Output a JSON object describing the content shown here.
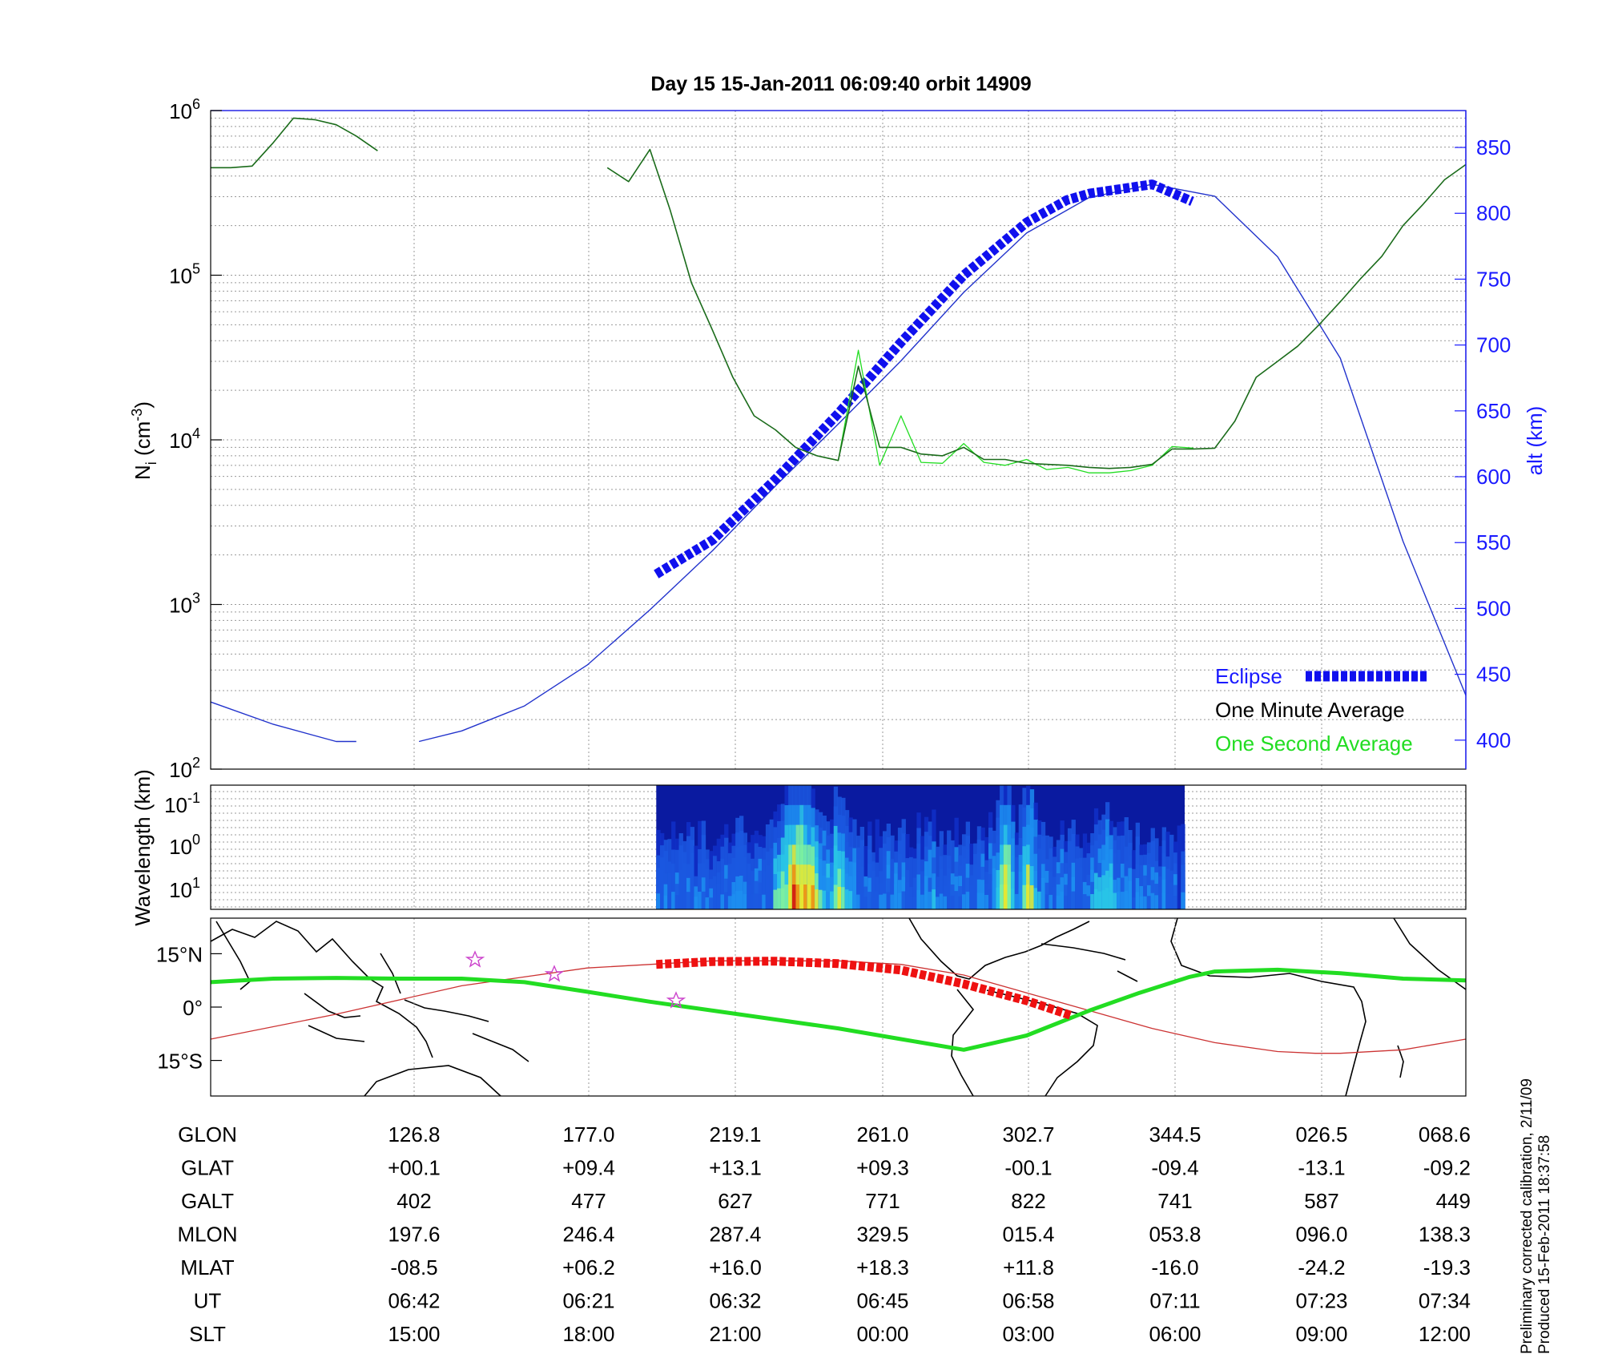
{
  "title": "Day 15  15-Jan-2011 06:09:40   orbit 14909",
  "panel1": {
    "ylabel_left": "N",
    "ylabel_left_sub": "i",
    "ylabel_left_unit_pre": " (cm",
    "ylabel_left_unit_sup": "-3",
    "ylabel_left_unit_post": ")",
    "ylabel_right": "alt (km)",
    "left_ticks": [
      {
        "base": "10",
        "exp": "2",
        "value": 100
      },
      {
        "base": "10",
        "exp": "3",
        "value": 1000
      },
      {
        "base": "10",
        "exp": "4",
        "value": 10000
      },
      {
        "base": "10",
        "exp": "5",
        "value": 100000
      },
      {
        "base": "10",
        "exp": "6",
        "value": 1000000
      }
    ],
    "right_ticks": [
      "400",
      "450",
      "500",
      "550",
      "600",
      "650",
      "700",
      "750",
      "800",
      "850"
    ],
    "legend": [
      "Eclipse",
      "One Minute Average",
      "One Second Average"
    ]
  },
  "panel2": {
    "ylabel": "Wavelength (km)",
    "ticks": [
      {
        "base": "10",
        "exp": "-1"
      },
      {
        "base": "10",
        "exp": "0"
      },
      {
        "base": "10",
        "exp": "1"
      }
    ]
  },
  "panel3": {
    "yticks": [
      "15°N",
      "0°",
      "15°S"
    ]
  },
  "table": {
    "rows": [
      {
        "label": "GLON",
        "values": [
          "126.8",
          "177.0",
          "219.1",
          "261.0",
          "302.7",
          "344.5",
          "026.5",
          "068.6"
        ]
      },
      {
        "label": "GLAT",
        "values": [
          "+00.1",
          "+09.4",
          "+13.1",
          "+09.3",
          "-00.1",
          "-09.4",
          "-13.1",
          "-09.2"
        ]
      },
      {
        "label": "GALT",
        "values": [
          "402",
          "477",
          "627",
          "771",
          "822",
          "741",
          "587",
          "449"
        ]
      },
      {
        "label": "MLON",
        "values": [
          "197.6",
          "246.4",
          "287.4",
          "329.5",
          "015.4",
          "053.8",
          "096.0",
          "138.3"
        ]
      },
      {
        "label": "MLAT",
        "values": [
          "-08.5",
          "+06.2",
          "+16.0",
          "+18.3",
          "+11.8",
          "-16.0",
          "-24.2",
          "-19.3"
        ]
      },
      {
        "label": "UT",
        "values": [
          "06:42",
          "06:21",
          "06:32",
          "06:45",
          "06:58",
          "07:11",
          "07:23",
          "07:34"
        ]
      },
      {
        "label": "SLT",
        "values": [
          "15:00",
          "18:00",
          "21:00",
          "00:00",
          "03:00",
          "06:00",
          "09:00",
          "12:00"
        ]
      }
    ]
  },
  "footnote": [
    "Preliminary corrected calibration, 2/11/09",
    "Produced 15-Feb-2011 18:37:58"
  ],
  "colors": {
    "eclipse": "#1010ee",
    "altitude": "#2233cc",
    "minute_avg": "#1a6b1a",
    "second_avg": "#22dd22",
    "ground_track": "#22dd22",
    "equator": "#cc3333",
    "eclipse_track": "#ee1111",
    "axis_right": "#1a1aff"
  },
  "chart_data": [
    {
      "type": "line",
      "title": "Day 15  15-Jan-2011 06:09:40   orbit 14909",
      "ylabel": "Ni (cm-3)",
      "y2label": "alt (km)",
      "yscale": "log",
      "ylim": [
        100,
        1000000
      ],
      "y2lim": [
        378,
        878
      ],
      "x_tick_labels_slt": [
        "15:00",
        "18:00",
        "21:00",
        "00:00",
        "03:00",
        "06:00",
        "09:00",
        "12:00"
      ],
      "grid": true,
      "legend_position": "bottom-right",
      "series": [
        {
          "name": "One Minute Average",
          "x": [
            0,
            1.6,
            3.3,
            5,
            6.6,
            8.3,
            10,
            11.6,
            13.3,
            15,
            16.6,
            18.3,
            20,
            21.6,
            23.3,
            25,
            26.6,
            28.3,
            30,
            31.6,
            33.3,
            35,
            36.6,
            38.3,
            40,
            41.6,
            43.3,
            45,
            46.6,
            48.3,
            50,
            51.6,
            53.3,
            55,
            56.6,
            58.3,
            60,
            61.6,
            63.3,
            65,
            66.6,
            68.3,
            70,
            71.6,
            73.3,
            75,
            76.6,
            78.3,
            80,
            81.6,
            83.3,
            85,
            86.6,
            88.3,
            90,
            91.6,
            93.3,
            95,
            96.6,
            98.3,
            100
          ],
          "y": [
            450000,
            450000,
            460000,
            640000,
            900000,
            880000,
            820000,
            700000,
            570000,
            null,
            null,
            null,
            null,
            null,
            null,
            null,
            null,
            null,
            null,
            450000,
            370000,
            580000,
            250000,
            90000,
            46000,
            24000,
            14000,
            11500,
            9000,
            8000,
            7500,
            28000,
            9000,
            9000,
            8200,
            8000,
            9000,
            7600,
            7600,
            7200,
            7100,
            7000,
            6800,
            6700,
            6800,
            7100,
            8800,
            8800,
            8900,
            13000,
            24000,
            30000,
            37000,
            50000,
            69000,
            95000,
            130000,
            200000,
            270000,
            380000,
            470000
          ]
        },
        {
          "name": "One Second Average",
          "x": [
            48.3,
            50,
            51.6,
            53.3,
            55,
            56.6,
            58.3,
            60,
            61.6,
            63.3,
            65,
            66.6,
            68.3,
            70,
            71.6,
            73.3,
            75,
            76.6,
            78.3
          ],
          "y": [
            8000,
            7500,
            35000,
            7000,
            14000,
            7300,
            7200,
            9500,
            7300,
            7000,
            7600,
            6600,
            6800,
            6300,
            6300,
            6500,
            7000,
            9100,
            8900
          ]
        },
        {
          "name": "alt (km)",
          "x": [
            0,
            5,
            10,
            11.6,
            16.6,
            20,
            25,
            30,
            35,
            40,
            45,
            50,
            55,
            60,
            65,
            70,
            75,
            80,
            85,
            90,
            95,
            100
          ],
          "y": [
            429,
            412,
            399,
            399,
            399,
            407,
            426,
            457,
            499,
            544,
            593,
            640,
            688,
            740,
            785,
            812,
            822,
            813,
            767,
            690,
            551,
            434
          ]
        },
        {
          "name": "Eclipse",
          "x": [
            35.5,
            40,
            45,
            50,
            55,
            60,
            65,
            68.2,
            70,
            75,
            78.2
          ],
          "y": [
            526,
            552,
            598,
            648,
            702,
            753,
            793,
            810,
            815,
            822,
            809
          ]
        }
      ]
    },
    {
      "type": "heatmap",
      "ylabel": "Wavelength (km)",
      "ytick_labels": [
        "10-1",
        "100",
        "101"
      ],
      "data_extent_x_percent": [
        35.5,
        77.6
      ]
    },
    {
      "type": "line",
      "ytick_labels": [
        "15°N",
        "0°",
        "15°S"
      ],
      "ylim": [
        -25,
        25
      ],
      "series": [
        {
          "name": "ground track",
          "x": [
            0,
            5,
            10,
            15,
            18,
            20,
            25,
            30,
            35,
            40,
            45,
            50,
            55,
            60,
            65,
            70,
            74,
            78,
            80,
            85,
            90,
            95,
            100
          ],
          "y": [
            7,
            8,
            8.2,
            8,
            8,
            8,
            7,
            4.3,
            1.5,
            -1,
            -3.5,
            -6,
            -9,
            -12,
            -8,
            -1,
            4,
            8.5,
            10,
            10.5,
            9.5,
            8,
            7.5
          ]
        },
        {
          "name": "equator",
          "x": [
            0,
            10,
            20,
            30,
            40,
            50,
            55,
            60,
            65,
            70,
            75,
            80,
            85,
            88,
            90,
            95,
            100
          ],
          "y": [
            -9,
            -2,
            6,
            11,
            13,
            13,
            12,
            9,
            4,
            -1,
            -6,
            -10,
            -12.5,
            -13,
            -13,
            -12,
            -9
          ]
        },
        {
          "name": "eclipse track",
          "x": [
            35.5,
            40,
            45,
            50,
            55,
            60,
            65,
            68.5
          ],
          "y": [
            12,
            12.8,
            12.9,
            12.2,
            10.4,
            6.5,
            1.8,
            -2.3
          ]
        }
      ]
    }
  ]
}
